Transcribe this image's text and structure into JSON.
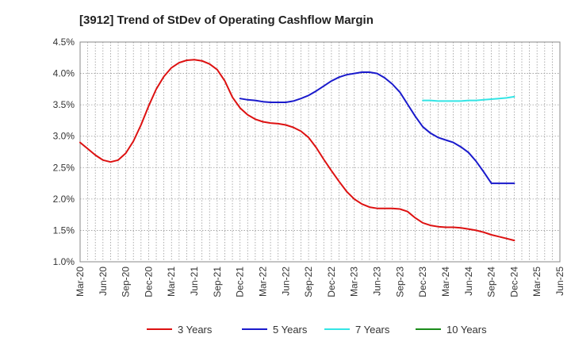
{
  "chart_data": {
    "type": "line",
    "title": "[3912]  Trend of StDev of Operating Cashflow Margin",
    "xlabel": "",
    "ylabel": "",
    "y_tick_labels": [
      "4.5%",
      "4.0%",
      "3.5%",
      "3.0%",
      "2.5%",
      "2.0%",
      "1.5%",
      "1.0%"
    ],
    "y_tick_values": [
      4.5,
      4.0,
      3.5,
      3.0,
      2.5,
      2.0,
      1.5,
      1.0
    ],
    "ylim": [
      1.0,
      4.5
    ],
    "x_tick_labels": [
      "Mar-20",
      "Jun-20",
      "Sep-20",
      "Dec-20",
      "Mar-21",
      "Jun-21",
      "Sep-21",
      "Dec-21",
      "Mar-22",
      "Jun-22",
      "Sep-22",
      "Dec-22",
      "Mar-23",
      "Jun-23",
      "Sep-23",
      "Dec-23",
      "Mar-24",
      "Jun-24",
      "Sep-24",
      "Dec-24",
      "Mar-25",
      "Jun-25"
    ],
    "grid": true,
    "legend_position": "bottom",
    "series": [
      {
        "name": "3 Years",
        "color": "#dd1111",
        "x": [
          "Mar-20",
          "Apr-20",
          "May-20",
          "Jun-20",
          "Jul-20",
          "Aug-20",
          "Sep-20",
          "Oct-20",
          "Nov-20",
          "Dec-20",
          "Jan-21",
          "Feb-21",
          "Mar-21",
          "Apr-21",
          "May-21",
          "Jun-21",
          "Jul-21",
          "Aug-21",
          "Sep-21",
          "Oct-21",
          "Nov-21",
          "Dec-21",
          "Jan-22",
          "Feb-22",
          "Mar-22",
          "Apr-22",
          "May-22",
          "Jun-22",
          "Jul-22",
          "Aug-22",
          "Sep-22",
          "Oct-22",
          "Nov-22",
          "Dec-22",
          "Jan-23",
          "Feb-23",
          "Mar-23",
          "Apr-23",
          "May-23",
          "Jun-23",
          "Jul-23",
          "Aug-23",
          "Sep-23",
          "Oct-23",
          "Nov-23",
          "Dec-23",
          "Jan-24",
          "Feb-24",
          "Mar-24",
          "Apr-24",
          "May-24",
          "Jun-24",
          "Jul-24",
          "Aug-24",
          "Sep-24",
          "Oct-24",
          "Nov-24",
          "Dec-24"
        ],
        "values": [
          2.9,
          2.8,
          2.7,
          2.62,
          2.59,
          2.62,
          2.73,
          2.92,
          3.18,
          3.48,
          3.75,
          3.95,
          4.09,
          4.17,
          4.21,
          4.22,
          4.2,
          4.15,
          4.06,
          3.88,
          3.62,
          3.45,
          3.34,
          3.27,
          3.23,
          3.21,
          3.2,
          3.18,
          3.14,
          3.08,
          2.98,
          2.82,
          2.63,
          2.45,
          2.28,
          2.12,
          2.0,
          1.92,
          1.87,
          1.85,
          1.85,
          1.85,
          1.84,
          1.8,
          1.7,
          1.62,
          1.58,
          1.56,
          1.55,
          1.55,
          1.54,
          1.52,
          1.5,
          1.47,
          1.43,
          1.4,
          1.37,
          1.34
        ]
      },
      {
        "name": "5 Years",
        "color": "#1a1acc",
        "x": [
          "Mar-21",
          "Apr-21",
          "May-21",
          "Jun-21",
          "Jul-21",
          "Aug-21",
          "Sep-21",
          "Oct-21",
          "Nov-21",
          "Dec-21",
          "Jan-22",
          "Feb-22",
          "Mar-22",
          "Apr-22",
          "May-22",
          "Jun-22",
          "Jul-22",
          "Aug-22",
          "Sep-22",
          "Oct-22",
          "Nov-22",
          "Dec-22",
          "Jan-23",
          "Feb-23",
          "Mar-23",
          "Apr-23",
          "May-23",
          "Jun-23",
          "Jul-23",
          "Aug-23",
          "Sep-23",
          "Oct-23",
          "Nov-23",
          "Dec-23",
          "Jan-24",
          "Feb-24",
          "Mar-24",
          "Apr-24",
          "May-24",
          "Jun-24",
          "Jul-24",
          "Aug-24",
          "Sep-24",
          "Oct-24",
          "Nov-24",
          "Dec-24"
        ],
        "values": [
          null,
          null,
          null,
          null,
          null,
          null,
          null,
          null,
          null,
          3.6,
          3.58,
          3.57,
          3.55,
          3.54,
          3.54,
          3.54,
          3.56,
          3.6,
          3.65,
          3.72,
          3.8,
          3.88,
          3.94,
          3.98,
          4.0,
          4.02,
          4.02,
          4.0,
          3.93,
          3.83,
          3.7,
          3.51,
          3.32,
          3.15,
          3.05,
          2.98,
          2.94,
          2.9,
          2.83,
          2.74,
          2.6,
          2.43,
          2.25,
          2.25,
          2.25,
          2.25
        ]
      },
      {
        "name": "7 Years",
        "color": "#33e5e5",
        "x": [
          "Dec-23",
          "Jan-24",
          "Feb-24",
          "Mar-24",
          "Apr-24",
          "May-24",
          "Jun-24",
          "Jul-24",
          "Aug-24",
          "Sep-24",
          "Oct-24",
          "Nov-24",
          "Dec-24"
        ],
        "values": [
          3.57,
          3.57,
          3.56,
          3.56,
          3.56,
          3.56,
          3.57,
          3.57,
          3.58,
          3.59,
          3.6,
          3.61,
          3.63
        ]
      },
      {
        "name": "10 Years",
        "color": "#1a8c1a",
        "x": [],
        "values": []
      }
    ]
  }
}
